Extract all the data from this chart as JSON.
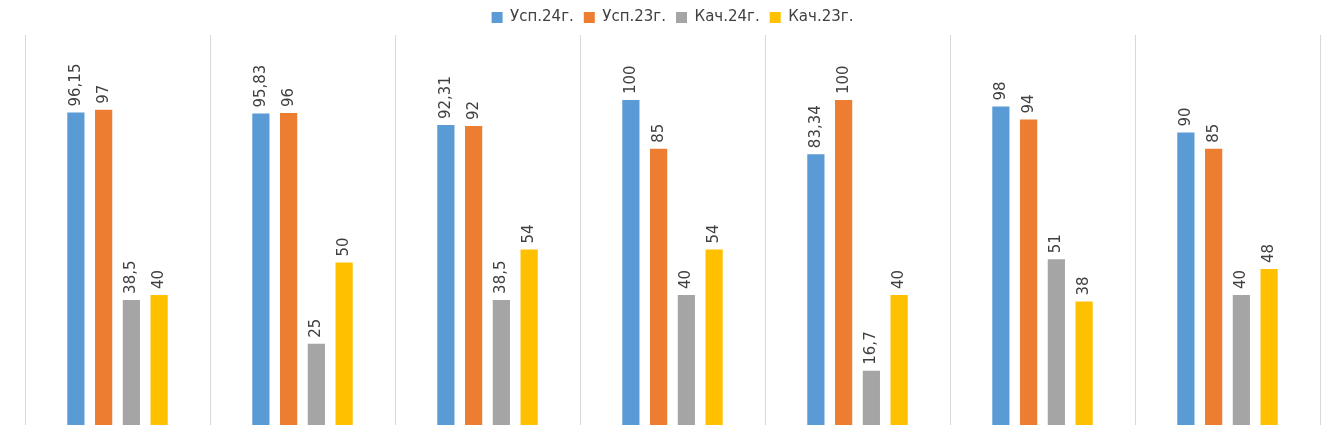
{
  "chart_data": {
    "type": "bar",
    "categories": [
      null,
      null,
      null,
      null,
      null,
      null,
      null
    ],
    "grid": "x",
    "legend": "top",
    "series": [
      {
        "name": "Усп.24г.",
        "color": "#5b9bd5",
        "values": [
          96.15,
          95.83,
          92.31,
          100,
          83.34,
          98,
          90
        ],
        "value_labels": [
          "96,15",
          "95,83",
          "92,31",
          "100",
          "83,34",
          "98",
          "90"
        ]
      },
      {
        "name": "Усп.23г.",
        "color": "#ed7d31",
        "values": [
          97,
          96,
          92,
          85,
          100,
          94,
          85
        ],
        "value_labels": [
          "97",
          "96",
          "92",
          "85",
          "100",
          "94",
          "85"
        ]
      },
      {
        "name": "Кач.24г.",
        "color": "#a5a5a5",
        "values": [
          38.5,
          25,
          38.5,
          40,
          16.7,
          51,
          40
        ],
        "value_labels": [
          "38,5",
          "25",
          "38,5",
          "40",
          "16,7",
          "51",
          "40"
        ]
      },
      {
        "name": "Кач.23г.",
        "color": "#ffc000",
        "values": [
          40,
          50,
          54,
          54,
          40,
          38,
          48
        ],
        "value_labels": [
          "40",
          "50",
          "54",
          "54",
          "40",
          "38",
          "48"
        ]
      }
    ]
  }
}
